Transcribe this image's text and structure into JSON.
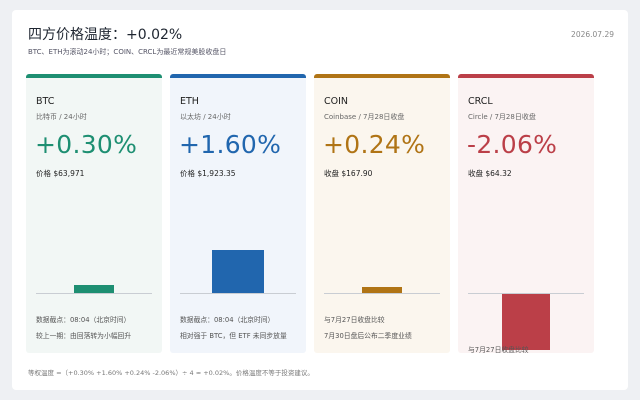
{
  "header": {
    "title_prefix": "四方价格温度：",
    "title_value": "+0.02%",
    "date": "2026.07.29",
    "subtitle": "BTC、ETH为滚动24小时；COIN、CRCL为最近常规美股收盘日"
  },
  "colors": {
    "btc": "#1e8f72",
    "eth": "#2166ae",
    "coin": "#b07415",
    "crcl": "#bb3f48",
    "btc_bg": "#f2f7f5",
    "eth_bg": "#f1f5fb",
    "coin_bg": "#fbf6ee",
    "crcl_bg": "#fbf3f3"
  },
  "cards": [
    {
      "symbol": "BTC",
      "sub": "比特币 / 24小时",
      "change": "+0.30%",
      "change_value": 0.3,
      "price": "价格 $63,971",
      "note1": "数据截点：08:04（北京时间）",
      "note2": "较上一期：由回落转为小幅回升"
    },
    {
      "symbol": "ETH",
      "sub": "以太坊 / 24小时",
      "change": "+1.60%",
      "change_value": 1.6,
      "price": "价格 $1,923.35",
      "note1": "数据截点：08:04（北京时间）",
      "note2": "相对强于 BTC，但 ETF 未同步放量"
    },
    {
      "symbol": "COIN",
      "sub": "Coinbase / 7月28日收盘",
      "change": "+0.24%",
      "change_value": 0.24,
      "price": "收盘 $167.90",
      "note1": "与7月27日收盘比较",
      "note2": "7月30日盘后公布二季度业绩"
    },
    {
      "symbol": "CRCL",
      "sub": "Circle / 7月28日收盘",
      "change": "-2.06%",
      "change_value": -2.06,
      "price": "收盘 $64.32",
      "note1": "与7月27日收盘比较",
      "note2": ""
    }
  ],
  "footer": "等权温度 =（+0.30% +1.60% +0.24% -2.06%）÷ 4 ≈ +0.02%。价格温度不等于投资建议。"
}
